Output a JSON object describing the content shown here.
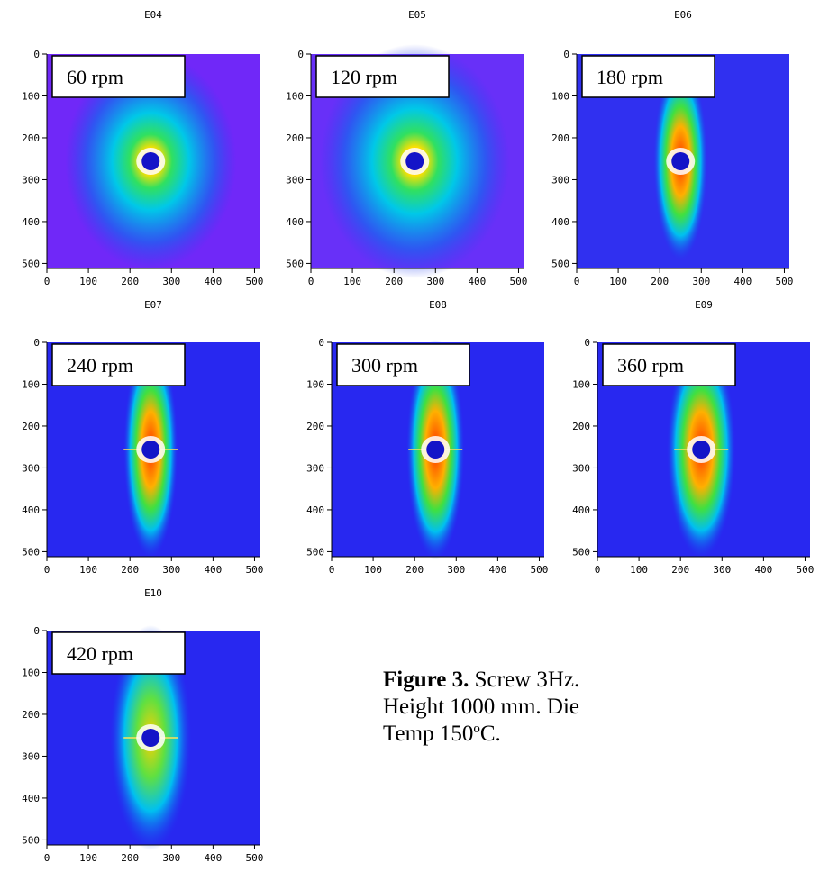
{
  "figure": {
    "xticks": [
      0,
      100,
      200,
      300,
      400,
      500
    ],
    "yticks": [
      0,
      100,
      200,
      300,
      400,
      500
    ],
    "xlim": [
      0,
      512
    ],
    "ylim": [
      0,
      512
    ],
    "panels": [
      {
        "title": "E04",
        "label": "60 rpm"
      },
      {
        "title": "E05",
        "label": "120 rpm"
      },
      {
        "title": "E06",
        "label": "180 rpm"
      },
      {
        "title": "E07",
        "label": "240 rpm"
      },
      {
        "title": "E08",
        "label": "300 rpm"
      },
      {
        "title": "E09",
        "label": "360 rpm"
      },
      {
        "title": "E10",
        "label": "420 rpm"
      }
    ],
    "caption": {
      "label": "Figure 3.",
      "line1": "Screw 3Hz.",
      "line2": "Height 1000 mm. Die",
      "line3": "Temp 150",
      "sup": "o",
      "line3_end": "C."
    }
  }
}
